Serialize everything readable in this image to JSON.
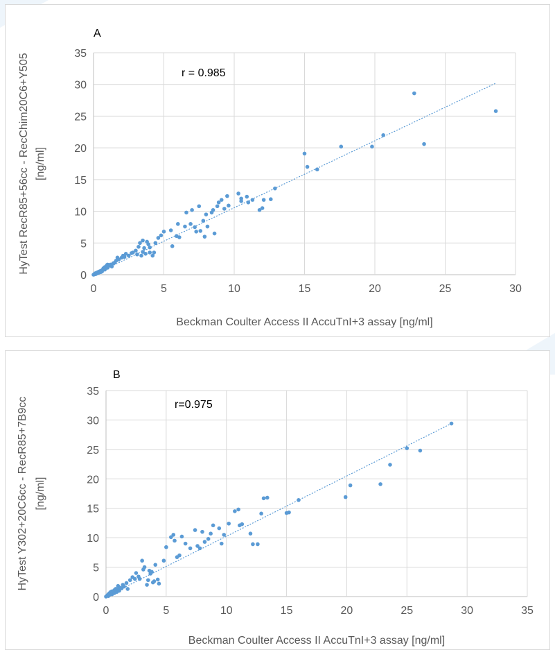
{
  "chart_data": [
    {
      "type": "scatter",
      "panel_label": "A",
      "annotation": "r = 0.985",
      "xlabel": "Beckman Coulter Access II AccuTnI+3 assay [ng/ml]",
      "ylabel_line1": "HyTest RecR85+56cc - RecChim20C6+Y505",
      "ylabel_line2": "[ng/ml]",
      "xlim": [
        0,
        30
      ],
      "ylim": [
        0,
        35
      ],
      "xticks": [
        "0",
        "5",
        "10",
        "15",
        "20",
        "25",
        "30"
      ],
      "yticks": [
        "0",
        "5",
        "10",
        "15",
        "20",
        "25",
        "30",
        "35"
      ],
      "grid": true,
      "trendline": {
        "x": [
          0,
          28.6
        ],
        "y": [
          0,
          30.2
        ]
      },
      "marker_color": "#5B9BD5",
      "x": [
        0.0,
        0.05,
        0.1,
        0.1,
        0.15,
        0.2,
        0.2,
        0.25,
        0.3,
        0.3,
        0.35,
        0.4,
        0.4,
        0.45,
        0.5,
        0.5,
        0.55,
        0.6,
        0.6,
        0.65,
        0.7,
        0.7,
        0.8,
        0.8,
        0.85,
        0.9,
        0.95,
        1.0,
        1.0,
        1.1,
        1.2,
        1.3,
        1.4,
        1.5,
        1.6,
        1.7,
        1.8,
        2.0,
        2.1,
        2.2,
        2.3,
        2.5,
        2.7,
        2.8,
        3.0,
        3.1,
        3.2,
        3.3,
        3.4,
        3.5,
        3.5,
        3.6,
        3.7,
        3.8,
        3.9,
        4.0,
        4.0,
        4.2,
        4.3,
        4.4,
        4.6,
        4.8,
        5.0,
        5.5,
        5.6,
        5.9,
        6.0,
        6.1,
        6.5,
        6.6,
        6.9,
        7.0,
        7.2,
        7.3,
        7.5,
        7.6,
        7.8,
        7.9,
        8.0,
        8.1,
        8.4,
        8.5,
        8.6,
        8.8,
        8.9,
        9.1,
        9.3,
        9.5,
        9.6,
        10.3,
        10.5,
        10.5,
        10.9,
        11.0,
        11.3,
        11.8,
        12.0,
        12.1,
        12.6,
        12.9,
        15.0,
        15.2,
        15.9,
        17.6,
        19.8,
        20.6,
        22.8,
        23.5,
        28.6
      ],
      "y": [
        0.0,
        0.05,
        0.1,
        0.2,
        0.1,
        0.2,
        0.3,
        0.2,
        0.3,
        0.4,
        0.3,
        0.4,
        0.5,
        0.5,
        0.4,
        0.6,
        0.6,
        0.7,
        0.5,
        0.8,
        0.9,
        1.0,
        0.8,
        1.2,
        1.0,
        1.3,
        1.5,
        1.1,
        1.6,
        1.4,
        1.6,
        1.3,
        1.8,
        1.9,
        2.2,
        2.7,
        2.4,
        2.7,
        3.0,
        2.8,
        3.3,
        3.0,
        3.4,
        3.5,
        3.8,
        3.2,
        4.4,
        5.0,
        3.0,
        3.6,
        5.4,
        4.2,
        3.3,
        5.2,
        4.8,
        3.5,
        4.3,
        3.0,
        3.5,
        5.0,
        5.8,
        6.2,
        6.8,
        7.0,
        4.5,
        6.1,
        8.0,
        5.9,
        7.6,
        9.8,
        8.0,
        10.2,
        7.5,
        6.8,
        10.8,
        6.9,
        8.5,
        6.0,
        9.5,
        7.6,
        9.8,
        10.2,
        6.5,
        10.8,
        11.4,
        11.8,
        10.4,
        12.4,
        10.9,
        12.8,
        11.6,
        12.0,
        12.3,
        11.4,
        11.8,
        10.2,
        10.5,
        11.8,
        11.9,
        13.6,
        19.1,
        17.0,
        16.6,
        20.2,
        20.2,
        22.0,
        28.6,
        20.6,
        25.8
      ]
    },
    {
      "type": "scatter",
      "panel_label": "B",
      "annotation": "r=0.975",
      "xlabel": "Beckman Coulter Access II AccuTnI+3 assay [ng/ml]",
      "ylabel_line1": "HyTest Y302+20C6cc - RecR85+7B9cc",
      "ylabel_line2": "[ng/ml]",
      "xlim": [
        0,
        35
      ],
      "ylim": [
        0,
        35
      ],
      "xticks": [
        "0",
        "5",
        "10",
        "15",
        "20",
        "25",
        "30",
        "35"
      ],
      "yticks": [
        "0",
        "5",
        "10",
        "15",
        "20",
        "25",
        "30",
        "35"
      ],
      "grid": true,
      "trendline": {
        "x": [
          0,
          28.7
        ],
        "y": [
          0,
          29.4
        ]
      },
      "marker_color": "#5B9BD5",
      "x": [
        0.0,
        0.1,
        0.2,
        0.2,
        0.3,
        0.3,
        0.4,
        0.4,
        0.5,
        0.5,
        0.6,
        0.7,
        0.7,
        0.8,
        0.8,
        0.9,
        1.0,
        1.0,
        1.1,
        1.2,
        1.3,
        1.4,
        1.5,
        1.7,
        1.8,
        2.0,
        2.2,
        2.4,
        2.5,
        2.7,
        2.8,
        3.0,
        3.1,
        3.2,
        3.4,
        3.5,
        3.6,
        3.7,
        3.8,
        3.9,
        4.0,
        4.1,
        4.3,
        4.4,
        4.8,
        5.0,
        5.4,
        5.6,
        5.7,
        5.9,
        6.1,
        6.3,
        6.6,
        7.0,
        7.4,
        7.6,
        7.8,
        8.0,
        8.2,
        8.5,
        8.7,
        8.9,
        9.4,
        9.6,
        9.8,
        10.2,
        10.7,
        11.0,
        11.1,
        11.3,
        12.0,
        12.2,
        12.6,
        12.9,
        13.1,
        13.4,
        15.0,
        15.2,
        16.0,
        19.9,
        20.3,
        22.8,
        23.6,
        25.0,
        26.1,
        28.7
      ],
      "y": [
        0.0,
        0.2,
        0.1,
        0.4,
        0.3,
        0.6,
        0.5,
        0.8,
        0.4,
        0.9,
        0.7,
        0.6,
        1.1,
        1.0,
        1.3,
        0.8,
        1.2,
        1.8,
        1.0,
        1.5,
        1.4,
        2.0,
        1.7,
        2.3,
        1.3,
        2.8,
        3.3,
        3.0,
        4.0,
        3.4,
        3.0,
        6.1,
        4.6,
        5.0,
        2.0,
        2.8,
        4.4,
        3.9,
        4.2,
        2.4,
        2.6,
        5.4,
        2.9,
        2.2,
        6.1,
        8.4,
        10.1,
        10.5,
        9.5,
        6.7,
        7.0,
        10.2,
        9.0,
        8.2,
        11.3,
        8.6,
        8.2,
        11.0,
        9.3,
        9.8,
        10.7,
        12.1,
        11.6,
        9.0,
        10.5,
        12.4,
        14.5,
        14.8,
        12.1,
        12.3,
        10.7,
        8.9,
        8.9,
        14.1,
        16.7,
        16.8,
        14.2,
        14.3,
        16.4,
        16.9,
        18.9,
        19.1,
        22.4,
        25.2,
        24.8,
        29.4
      ]
    }
  ]
}
